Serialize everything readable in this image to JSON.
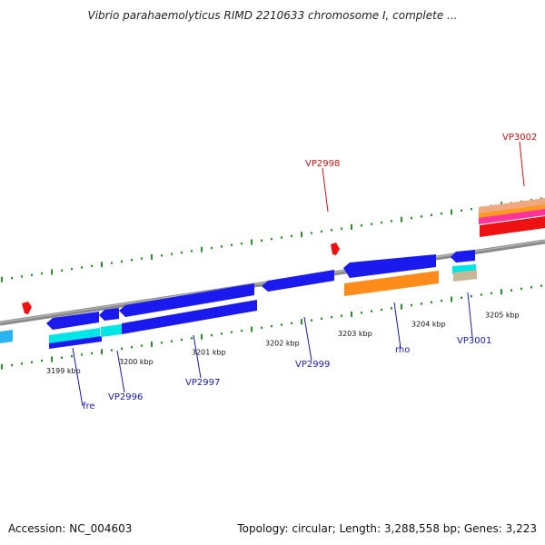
{
  "title": "Vibrio parahaemolyticus RIMD 2210633 chromosome I, complete ...",
  "footer": {
    "accession": "Accession: NC_004603",
    "summary": "Topology: circular; Length: 3,288,558 bp; Genes: 3,223"
  },
  "colors": {
    "backbone": "#8a8a8a",
    "tick": "#2e8b2e",
    "gene_blue": "#1a1aee",
    "gene_cyan": "#00e5e5",
    "gene_orange": "#ff8c1a",
    "gene_red": "#ee1111",
    "label_blue": "#1a1aaa",
    "label_red": "#cc1111"
  },
  "scale_labels": [
    "3199 kbp",
    "3200 kbp",
    "3201 kbp",
    "3202 kbp",
    "3203 kbp",
    "3204 kbp",
    "3205 kbp"
  ],
  "gene_labels": [
    {
      "text": "fre",
      "color": "#1a1aaa"
    },
    {
      "text": "VP2996",
      "color": "#1a1aaa"
    },
    {
      "text": "VP2997",
      "color": "#1a1aaa"
    },
    {
      "text": "VP2999",
      "color": "#1a1aaa"
    },
    {
      "text": "rho",
      "color": "#1a1aaa"
    },
    {
      "text": "VP3001",
      "color": "#1a1aaa"
    },
    {
      "text": "VP2998",
      "color": "#cc1111"
    },
    {
      "text": "VP3002",
      "color": "#cc1111"
    }
  ]
}
